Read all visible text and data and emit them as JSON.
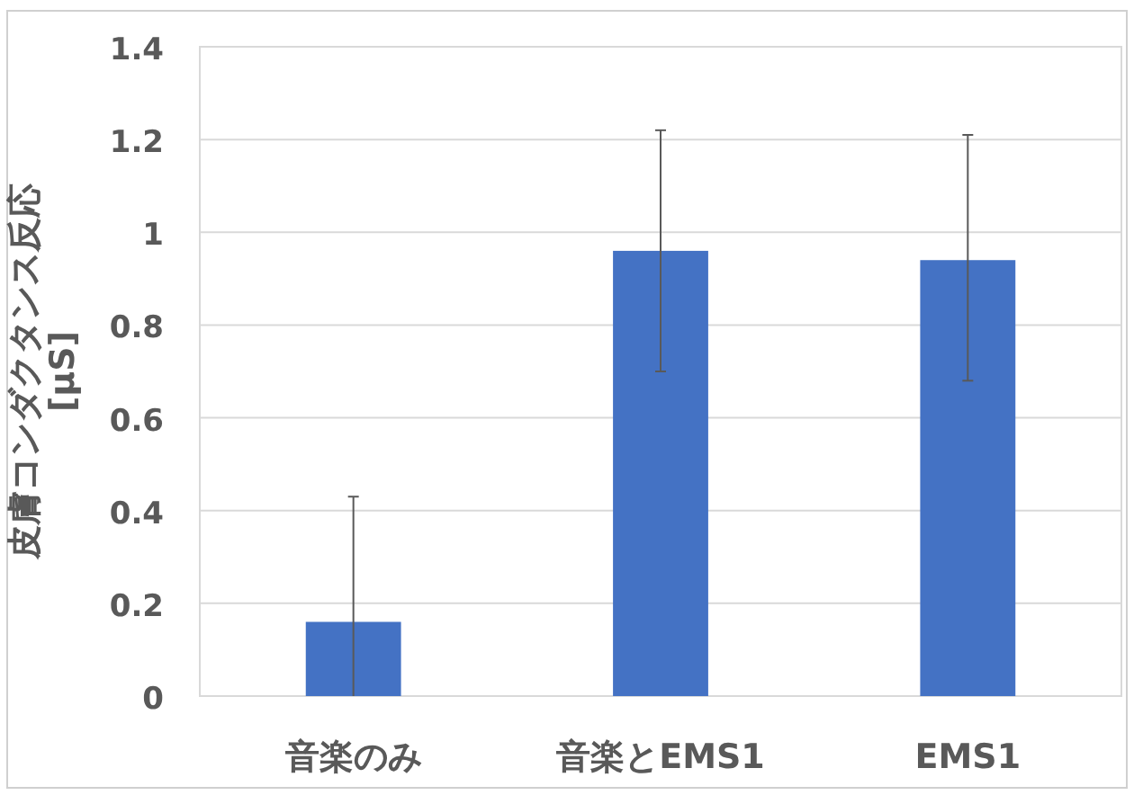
{
  "chart_data": {
    "type": "bar",
    "ylabel": "皮膚コンダクタンス反応\n[μS]",
    "categories": [
      "音楽のみ",
      "音楽とEMS1",
      "EMS1"
    ],
    "values": [
      0.16,
      0.96,
      0.94
    ],
    "errors": [
      [
        0,
        0.43
      ],
      [
        0.7,
        1.22
      ],
      [
        0.68,
        1.21
      ]
    ],
    "color": "#4472c4",
    "ylim": [
      0,
      1.4
    ],
    "yticks": [
      0,
      {
        "value": 0.2,
        "label": "0.2"
      },
      {
        "value": 0.4,
        "label": "0.4"
      },
      {
        "value": 0.6,
        "label": "0.6"
      },
      {
        "value": 0.8,
        "label": "0.8"
      },
      1,
      {
        "value": 1.2,
        "label": "1.2"
      },
      {
        "value": 1.4,
        "label": "1.4"
      }
    ],
    "grid": "y"
  }
}
